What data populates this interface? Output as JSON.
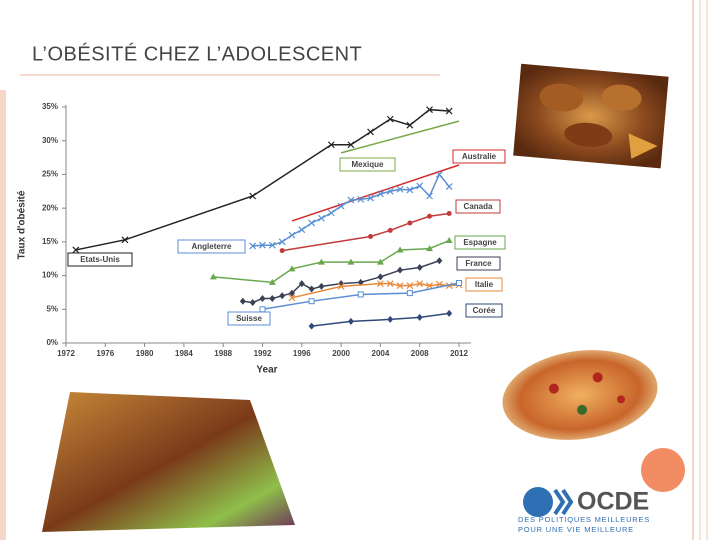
{
  "slide_title": "L’OBÉSITÉ CHEZ L’ADOLESCENT",
  "logo": {
    "name": "OCDE",
    "tagline_1": "DES POLITIQUES MEILLEURES",
    "tagline_2": "POUR UNE VIE MEILLEURE"
  },
  "chart_data": {
    "type": "line",
    "x_label": "Year",
    "y_label": "Taux d'obésité",
    "xlim": [
      1972,
      2012
    ],
    "xticks": [
      1972,
      1976,
      1980,
      1984,
      1988,
      1992,
      1996,
      2000,
      2004,
      2008,
      2012
    ],
    "ylim": [
      0,
      35
    ],
    "yticks": [
      {
        "value": 0,
        "label": "0%"
      },
      {
        "value": 5,
        "label": "5%"
      },
      {
        "value": 10,
        "label": "10%"
      },
      {
        "value": 15,
        "label": "15%"
      },
      {
        "value": 20,
        "label": "20%"
      },
      {
        "value": 25,
        "label": "25%"
      },
      {
        "value": 30,
        "label": "30%"
      },
      {
        "value": 35,
        "label": "35%"
      }
    ],
    "grid": false,
    "series": [
      {
        "name": "Etats-Unis",
        "color": "#222222",
        "marker": "x",
        "x": [
          1973,
          1978,
          1991,
          1999,
          2001,
          2003,
          2005,
          2007,
          2009,
          2011
        ],
        "values": [
          13.8,
          15.3,
          21.8,
          29.4,
          29.4,
          31.3,
          33.2,
          32.3,
          34.6,
          34.4
        ]
      },
      {
        "name": "Mexique",
        "color": "#77a845",
        "marker": "none",
        "x": [
          2000,
          2012
        ],
        "values": [
          28.2,
          32.9
        ]
      },
      {
        "name": "Australie",
        "color": "#d42a2a",
        "marker": "none",
        "x": [
          1995,
          2012
        ],
        "values": [
          18.1,
          26.4
        ]
      },
      {
        "name": "Angleterre",
        "color": "#5a8fd4",
        "marker": "x",
        "x": [
          1991,
          1992,
          1993,
          1994,
          1995,
          1996,
          1997,
          1998,
          1999,
          2000,
          2001,
          2002,
          2003,
          2004,
          2005,
          2006,
          2007,
          2008,
          2009,
          2010,
          2011
        ],
        "values": [
          14.4,
          14.5,
          14.5,
          15.0,
          16.0,
          16.8,
          17.8,
          18.5,
          19.3,
          20.3,
          21.2,
          21.3,
          21.5,
          22.1,
          22.5,
          22.8,
          22.7,
          23.3,
          21.8,
          25.0,
          23.2
        ]
      },
      {
        "name": "Canada",
        "color": "#c23b3b",
        "marker": "circle",
        "x": [
          1994,
          2003,
          2005,
          2007,
          2009,
          2011
        ],
        "values": [
          13.7,
          15.8,
          16.7,
          17.8,
          18.8,
          19.2
        ]
      },
      {
        "name": "Espagne",
        "color": "#6aa84f",
        "marker": "triangle",
        "x": [
          1987,
          1993,
          1995,
          1998,
          2001,
          2004,
          2006,
          2009,
          2011
        ],
        "values": [
          9.8,
          9.0,
          11.0,
          12.0,
          12.0,
          12.0,
          13.8,
          14.0,
          15.2
        ]
      },
      {
        "name": "France",
        "color": "#3b4256",
        "marker": "diamond",
        "x": [
          1990,
          1991,
          1992,
          1993,
          1994,
          1995,
          1996,
          1997,
          1998,
          2000,
          2002,
          2004,
          2006,
          2008,
          2010
        ],
        "values": [
          6.2,
          6.0,
          6.6,
          6.6,
          7.0,
          7.4,
          8.8,
          8.0,
          8.4,
          8.8,
          9.0,
          9.8,
          10.8,
          11.2,
          12.2
        ]
      },
      {
        "name": "Italie",
        "color": "#e8893a",
        "marker": "x",
        "x": [
          1995,
          2000,
          2004,
          2005,
          2006,
          2007,
          2008,
          2009,
          2010,
          2011,
          2012
        ],
        "values": [
          6.7,
          8.4,
          8.8,
          8.8,
          8.5,
          8.5,
          8.8,
          8.5,
          8.7,
          8.5,
          8.6
        ]
      },
      {
        "name": "Suisse",
        "color": "#5a8fd4",
        "marker": "square",
        "x": [
          1992,
          1997,
          2002,
          2007,
          2012
        ],
        "values": [
          5.0,
          6.2,
          7.2,
          7.4,
          8.9
        ]
      },
      {
        "name": "Corée",
        "color": "#2f4a7a",
        "marker": "diamond",
        "x": [
          1997,
          2001,
          2005,
          2008,
          2011
        ],
        "values": [
          2.5,
          3.2,
          3.5,
          3.8,
          4.4
        ]
      }
    ]
  }
}
